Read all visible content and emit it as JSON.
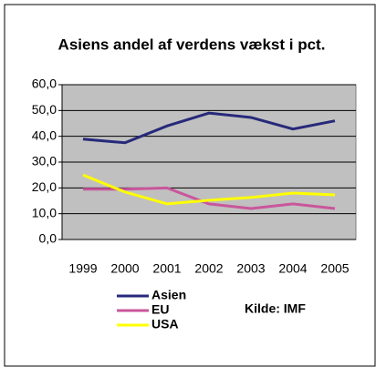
{
  "chart_data": {
    "type": "line",
    "title": "Asiens andel af verdens vækst i pct.",
    "annotation": "Kilde: IMF",
    "categories": [
      "1999",
      "2000",
      "2001",
      "2002",
      "2003",
      "2004",
      "2005"
    ],
    "series": [
      {
        "name": "Asien",
        "color": "#27297a",
        "values": [
          38.9,
          37.5,
          44,
          49,
          47.3,
          42.8,
          46
        ]
      },
      {
        "name": "EU",
        "color": "#c9569b",
        "values": [
          19.5,
          19.5,
          20,
          13.8,
          12,
          13.8,
          12
        ]
      },
      {
        "name": "USA",
        "color": "#ffff00",
        "values": [
          25,
          18.4,
          13.8,
          15.2,
          16.3,
          18,
          17.3
        ]
      }
    ],
    "ylim": [
      0,
      60
    ],
    "yticks": [
      {
        "value": 0,
        "label": "0,0"
      },
      {
        "value": 10,
        "label": "10,0"
      },
      {
        "value": 20,
        "label": "20,0"
      },
      {
        "value": 30,
        "label": "30,0"
      },
      {
        "value": 40,
        "label": "40,0"
      },
      {
        "value": 50,
        "label": "50,0"
      },
      {
        "value": 60,
        "label": "60,0"
      }
    ],
    "grid": true,
    "plot_background": "#c0c0c0"
  }
}
